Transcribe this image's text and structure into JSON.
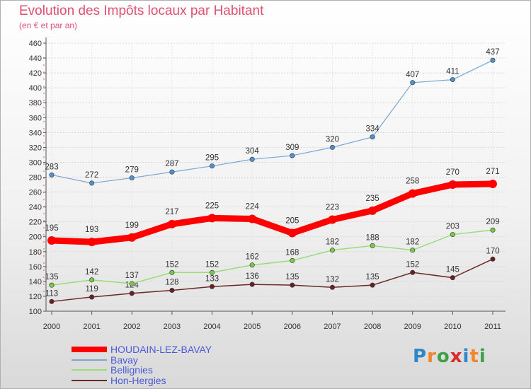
{
  "title": "Evolution des Impôts locaux par Habitant",
  "subtitle": "(en € et par an)",
  "logo": {
    "text": "Proxiti"
  },
  "chart_data": {
    "type": "line",
    "title": "Evolution des Impôts locaux par Habitant",
    "subtitle": "(en € et par an)",
    "x": [
      2000,
      2001,
      2002,
      2003,
      2004,
      2005,
      2006,
      2007,
      2008,
      2009,
      2010,
      2011
    ],
    "ylim": [
      100,
      460
    ],
    "yticks": [
      100,
      120,
      140,
      160,
      180,
      200,
      220,
      240,
      260,
      280,
      300,
      320,
      340,
      360,
      380,
      400,
      420,
      440,
      460
    ],
    "grid": true,
    "legend_position": "bottom-left",
    "series": [
      {
        "name": "HOUDAIN-LEZ-BAVAY",
        "color": "#ff0000",
        "values": [
          195,
          193,
          199,
          217,
          225,
          224,
          205,
          223,
          235,
          258,
          270,
          271
        ]
      },
      {
        "name": "Bavay",
        "color": "#7ba7cf",
        "values": [
          283,
          272,
          279,
          287,
          295,
          304,
          309,
          320,
          334,
          407,
          411,
          437
        ]
      },
      {
        "name": "Bellignies",
        "color": "#99dd77",
        "values": [
          135,
          142,
          137,
          152,
          152,
          162,
          168,
          182,
          188,
          182,
          203,
          209
        ]
      },
      {
        "name": "Hon-Hergies",
        "color": "#6b2a2a",
        "values": [
          113,
          119,
          124,
          128,
          133,
          136,
          135,
          132,
          135,
          152,
          145,
          170
        ]
      }
    ]
  }
}
